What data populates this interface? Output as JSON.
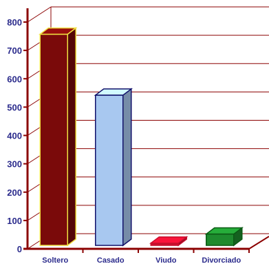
{
  "chart_data": {
    "type": "bar",
    "categories": [
      "Soltero",
      "Casado",
      "Viudo",
      "Divorciado"
    ],
    "values": [
      745,
      530,
      8,
      40
    ],
    "ylim": [
      0,
      800
    ],
    "yticks": [
      0,
      100,
      200,
      300,
      400,
      500,
      600,
      700,
      800
    ],
    "grid": true,
    "legend": "none",
    "colors": {
      "axis": "#8b0000",
      "grid": "#8b0000",
      "tick_text": "#2b2b8c",
      "bars": [
        "#7a0a0a",
        "#a8c8f0",
        "#c8102e",
        "#1e8a2e"
      ],
      "bar_edges": [
        "#f0e040",
        "#10106a",
        "#c8102e",
        "#0a5a14"
      ]
    }
  }
}
